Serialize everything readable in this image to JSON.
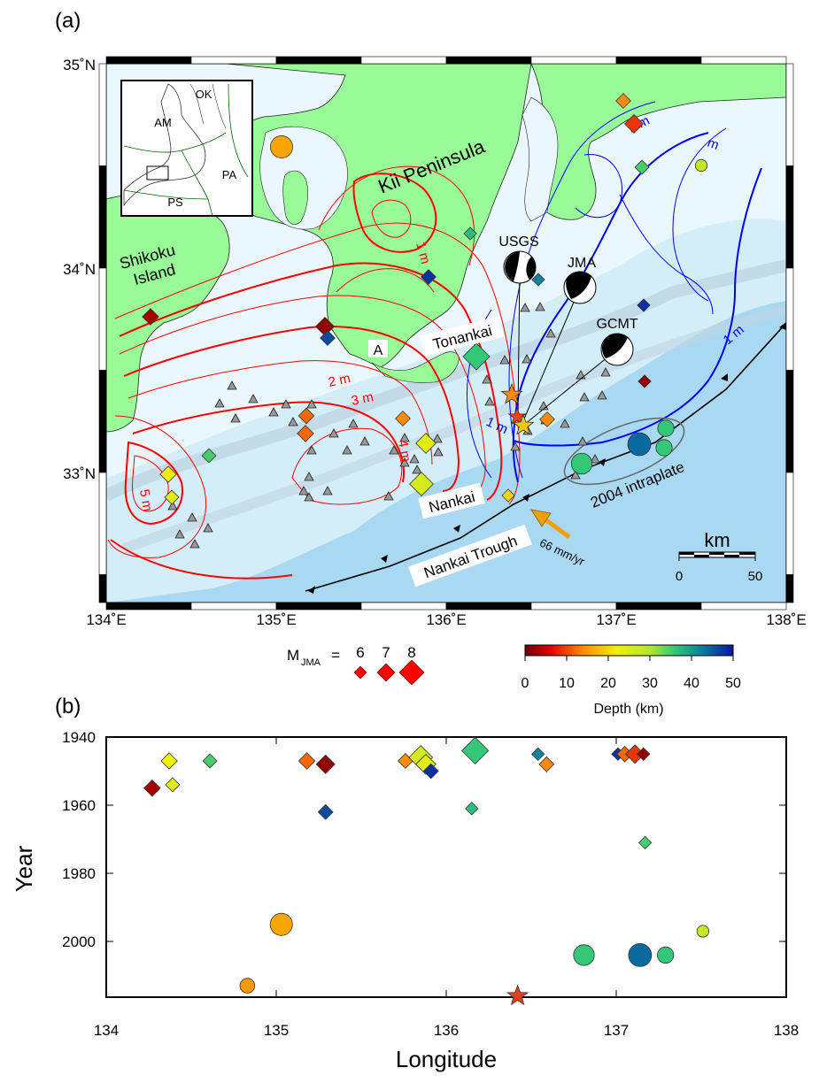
{
  "panel_a": {
    "label": "(a)",
    "lon_ticks": [
      "134˚E",
      "135˚E",
      "136˚E",
      "137˚E",
      "138˚E"
    ],
    "lat_ticks": [
      "35˚N",
      "34˚N",
      "33˚N"
    ],
    "place_labels": {
      "kii": "Kii Peninsula",
      "shikoku_1": "Shikoku",
      "shikoku_2": "Island",
      "tonankai": "Tonankai",
      "nankai": "Nankai",
      "trough": "Nankai Trough",
      "point_a": "A",
      "intraplate": "2004 intraplate",
      "rate": "66 mm/yr"
    },
    "focal_mechanisms": [
      "USGS",
      "JMA",
      "GCMT"
    ],
    "contour_labels": [
      "1 m",
      "2 m",
      "3 m",
      "4 m",
      "5 m",
      "1 m",
      "1 m",
      "m",
      "1 m"
    ],
    "inset": {
      "labels": [
        "AM",
        "OK",
        "PA",
        "PS"
      ]
    },
    "scale_bar": {
      "title": "km",
      "ticks": [
        "0",
        "50"
      ]
    },
    "colors": {
      "land": "#98fb98",
      "sea_shallow": "#e6f6fb",
      "sea_deep": "#a9d8f3",
      "slip_red": "#ff0000",
      "slip_blue": "#0000ff"
    }
  },
  "legend": {
    "mag_prefix": "M",
    "mag_sub": "JMA",
    "mag_eq": "=",
    "mag_values": [
      "6",
      "7",
      "8"
    ],
    "depth_ticks": [
      "0",
      "10",
      "20",
      "30",
      "40",
      "50"
    ],
    "depth_title": "Depth (km)"
  },
  "panel_b": {
    "label": "(b)",
    "y_ticks": [
      "1940",
      "1960",
      "1980",
      "2000"
    ],
    "x_ticks": [
      "134",
      "135",
      "136",
      "137",
      "138"
    ],
    "ylabel": "Year",
    "xlabel": "Longitude"
  },
  "chart_data": {
    "type": "scatter",
    "xlabel": "Longitude",
    "ylabel": "Year",
    "xlim": [
      134,
      138
    ],
    "ylim": [
      2015,
      1940
    ],
    "grid": false,
    "points": [
      {
        "lon": 134.27,
        "year": 1955,
        "shape": "diamond",
        "mag": 6.5,
        "depth": 3
      },
      {
        "lon": 134.37,
        "year": 1947,
        "shape": "diamond",
        "mag": 6.5,
        "depth": 22
      },
      {
        "lon": 134.39,
        "year": 1954,
        "shape": "diamond",
        "mag": 6.2,
        "depth": 24
      },
      {
        "lon": 134.61,
        "year": 1947,
        "shape": "diamond",
        "mag": 6.2,
        "depth": 35
      },
      {
        "lon": 135.18,
        "year": 1947,
        "shape": "diamond",
        "mag": 6.5,
        "depth": 12
      },
      {
        "lon": 135.29,
        "year": 1948,
        "shape": "diamond",
        "mag": 6.8,
        "depth": 2
      },
      {
        "lon": 135.29,
        "year": 1962,
        "shape": "diamond",
        "mag": 6.3,
        "depth": 46
      },
      {
        "lon": 135.76,
        "year": 1947,
        "shape": "diamond",
        "mag": 6.3,
        "depth": 14
      },
      {
        "lon": 135.85,
        "year": 1946,
        "shape": "diamond",
        "mag": 7.5,
        "depth": 26
      },
      {
        "lon": 135.88,
        "year": 1948,
        "shape": "diamond",
        "mag": 7.0,
        "depth": 24
      },
      {
        "lon": 135.91,
        "year": 1950,
        "shape": "diamond",
        "mag": 6.3,
        "depth": 48
      },
      {
        "lon": 136.17,
        "year": 1944,
        "shape": "diamond",
        "mag": 7.9,
        "depth": 36
      },
      {
        "lon": 136.15,
        "year": 1961,
        "shape": "diamond",
        "mag": 6.0,
        "depth": 37
      },
      {
        "lon": 136.54,
        "year": 1945,
        "shape": "diamond",
        "mag": 6.0,
        "depth": 42
      },
      {
        "lon": 136.59,
        "year": 1948,
        "shape": "diamond",
        "mag": 6.3,
        "depth": 14
      },
      {
        "lon": 137.01,
        "year": 1945,
        "shape": "diamond",
        "mag": 6.0,
        "depth": 48
      },
      {
        "lon": 137.05,
        "year": 1945,
        "shape": "diamond",
        "mag": 6.4,
        "depth": 12
      },
      {
        "lon": 137.11,
        "year": 1945,
        "shape": "diamond",
        "mag": 6.8,
        "depth": 9
      },
      {
        "lon": 137.16,
        "year": 1945,
        "shape": "diamond",
        "mag": 6.0,
        "depth": 2
      },
      {
        "lon": 137.17,
        "year": 1971,
        "shape": "diamond",
        "mag": 6.0,
        "depth": 35
      },
      {
        "lon": 135.03,
        "year": 1995,
        "shape": "circle",
        "mag": 7.3,
        "depth": 16
      },
      {
        "lon": 134.83,
        "year": 2013,
        "shape": "circle",
        "mag": 6.3,
        "depth": 15
      },
      {
        "lon": 136.81,
        "year": 2004,
        "shape": "circle",
        "mag": 7.1,
        "depth": 36
      },
      {
        "lon": 137.14,
        "year": 2004,
        "shape": "circle",
        "mag": 7.4,
        "depth": 44
      },
      {
        "lon": 137.29,
        "year": 2004,
        "shape": "circle",
        "mag": 6.5,
        "depth": 36
      },
      {
        "lon": 137.51,
        "year": 1997,
        "shape": "circle",
        "mag": 5.9,
        "depth": 28
      },
      {
        "lon": 136.42,
        "year": 2016,
        "shape": "star",
        "mag": 6.5,
        "depth": 10
      }
    ]
  }
}
